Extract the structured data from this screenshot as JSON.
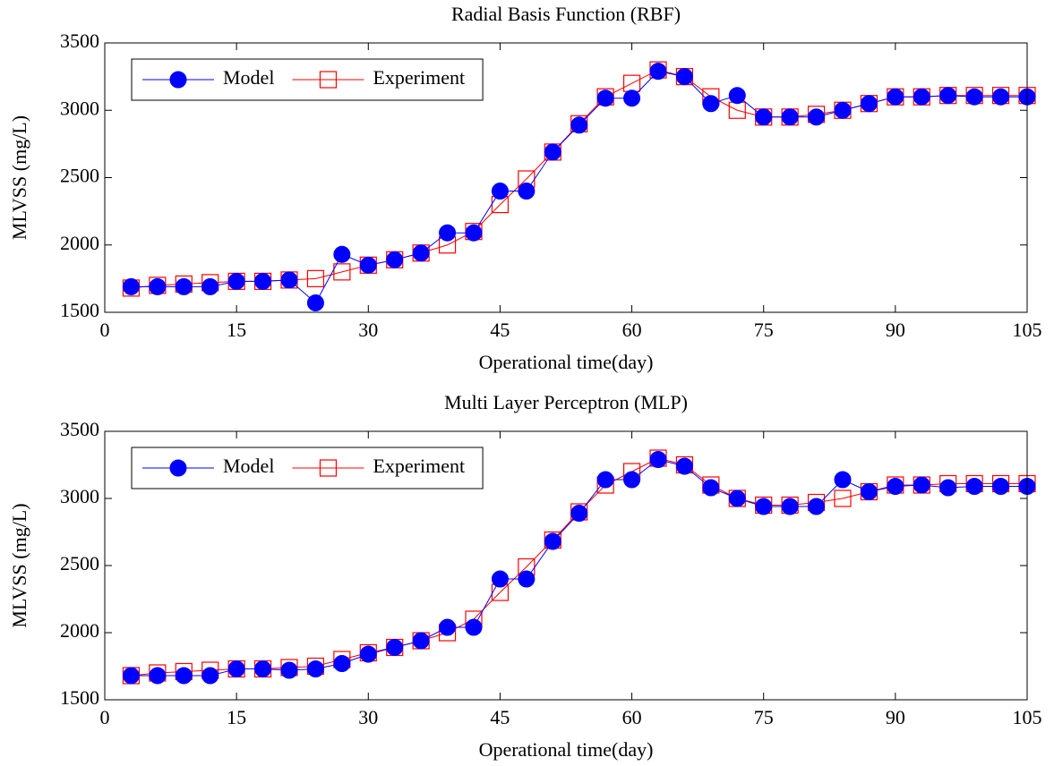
{
  "chart_data": [
    {
      "type": "line",
      "title": "Radial Basis Function (RBF)",
      "x_label": "Operational time(day)",
      "y_label": "MLVSS (mg/L)",
      "x": [
        3,
        6,
        9,
        12,
        15,
        18,
        21,
        24,
        27,
        30,
        33,
        36,
        39,
        42,
        45,
        48,
        51,
        54,
        57,
        60,
        63,
        66,
        69,
        72,
        75,
        78,
        81,
        84,
        87,
        90,
        93,
        96,
        99,
        102,
        105
      ],
      "series": [
        {
          "name": "Model",
          "color": "#0000ff",
          "marker": "circle",
          "values": [
            1690,
            1690,
            1690,
            1690,
            1730,
            1730,
            1740,
            1570,
            1930,
            1850,
            1890,
            1940,
            2090,
            2090,
            2400,
            2400,
            2690,
            2890,
            3090,
            3090,
            3290,
            3250,
            3050,
            3110,
            2950,
            2950,
            2950,
            3000,
            3050,
            3100,
            3100,
            3110,
            3100,
            3100,
            3100
          ]
        },
        {
          "name": "Experiment",
          "color": "#ff0000",
          "marker": "square",
          "values": [
            1680,
            1700,
            1710,
            1720,
            1730,
            1730,
            1740,
            1750,
            1800,
            1850,
            1890,
            1940,
            2000,
            2100,
            2300,
            2490,
            2690,
            2900,
            3100,
            3200,
            3300,
            3250,
            3100,
            3000,
            2950,
            2950,
            2970,
            3000,
            3050,
            3100,
            3100,
            3110,
            3110,
            3110,
            3110
          ]
        }
      ],
      "xlim": [
        0,
        105
      ],
      "xticks": [
        0,
        15,
        30,
        45,
        60,
        75,
        90,
        105
      ],
      "ylim": [
        1500,
        3500
      ],
      "yticks": [
        1500,
        2000,
        2500,
        3000,
        3500
      ],
      "legend": "upper left"
    },
    {
      "type": "line",
      "title": "Multi Layer Perceptron (MLP)",
      "x_label": "Operational time(day)",
      "y_label": "MLVSS (mg/L)",
      "x": [
        3,
        6,
        9,
        12,
        15,
        18,
        21,
        24,
        27,
        30,
        33,
        36,
        39,
        42,
        45,
        48,
        51,
        54,
        57,
        60,
        63,
        66,
        69,
        72,
        75,
        78,
        81,
        84,
        87,
        90,
        93,
        96,
        99,
        102,
        105
      ],
      "series": [
        {
          "name": "Model",
          "color": "#0000ff",
          "marker": "circle",
          "values": [
            1680,
            1680,
            1680,
            1680,
            1730,
            1730,
            1720,
            1730,
            1770,
            1840,
            1890,
            1940,
            2040,
            2040,
            2400,
            2400,
            2680,
            2890,
            3140,
            3140,
            3290,
            3240,
            3080,
            3000,
            2940,
            2940,
            2940,
            3140,
            3050,
            3090,
            3100,
            3080,
            3090,
            3090,
            3090
          ]
        },
        {
          "name": "Experiment",
          "color": "#ff0000",
          "marker": "square",
          "values": [
            1680,
            1700,
            1710,
            1720,
            1730,
            1730,
            1740,
            1750,
            1800,
            1850,
            1890,
            1940,
            2000,
            2100,
            2300,
            2490,
            2690,
            2900,
            3100,
            3200,
            3300,
            3250,
            3100,
            3000,
            2950,
            2950,
            2970,
            3000,
            3050,
            3100,
            3100,
            3110,
            3110,
            3110,
            3110
          ]
        }
      ],
      "xlim": [
        0,
        105
      ],
      "xticks": [
        0,
        15,
        30,
        45,
        60,
        75,
        90,
        105
      ],
      "ylim": [
        1500,
        3500
      ],
      "yticks": [
        1500,
        2000,
        2500,
        3000,
        3500
      ],
      "legend": "upper left"
    }
  ]
}
